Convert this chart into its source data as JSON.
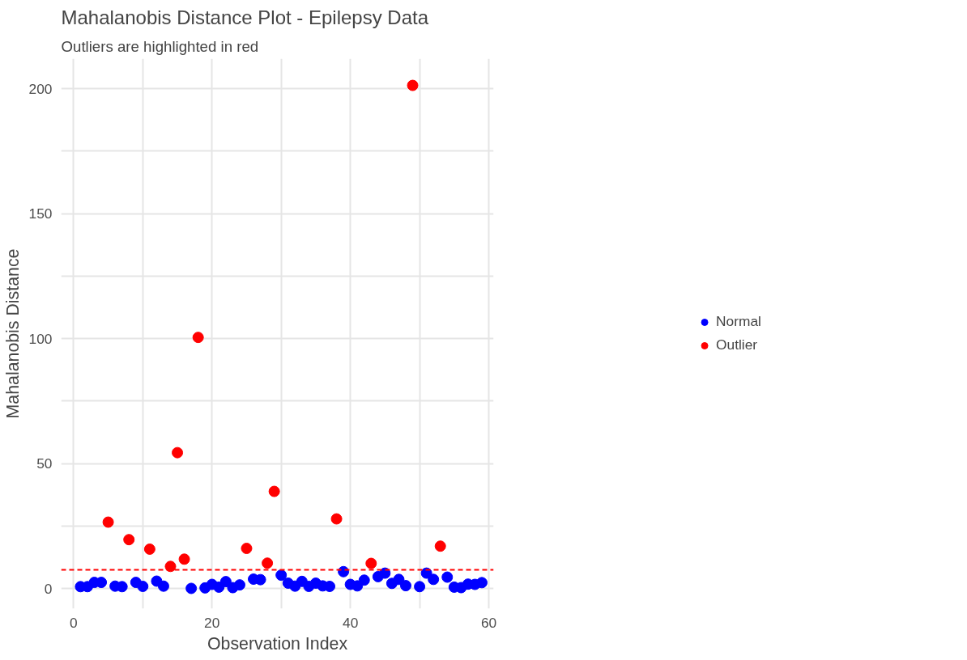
{
  "chart_data": {
    "type": "scatter",
    "title": "Mahalanobis Distance Plot - Epilepsy Data",
    "subtitle": "Outliers are highlighted in red",
    "xlabel": "Observation Index",
    "ylabel": "Mahalanobis Distance",
    "series": [
      {
        "name": "Normal",
        "color": "#0000ff",
        "x": [
          1,
          2,
          3,
          4,
          6,
          7,
          9,
          10,
          12,
          13,
          17,
          19,
          20,
          21,
          22,
          23,
          24,
          26,
          27,
          30,
          31,
          32,
          33,
          34,
          35,
          36,
          37,
          39,
          40,
          41,
          42,
          44,
          45,
          46,
          47,
          48,
          50,
          51,
          52,
          54,
          55,
          56,
          57,
          58,
          59
        ],
        "values": [
          0.8,
          0.8,
          2.5,
          2.5,
          1.0,
          0.8,
          2.5,
          0.9,
          3.0,
          1.0,
          0.1,
          0.3,
          1.7,
          0.6,
          2.8,
          0.4,
          1.5,
          3.8,
          3.6,
          5.4,
          2.2,
          1.0,
          2.9,
          0.9,
          2.2,
          1.1,
          0.9,
          6.8,
          1.7,
          1.1,
          3.4,
          4.8,
          6.2,
          2.1,
          3.7,
          1.2,
          0.8,
          6.2,
          3.7,
          4.6,
          0.6,
          0.4,
          1.8,
          1.7,
          2.4
        ]
      },
      {
        "name": "Outlier",
        "color": "#ff0000",
        "x": [
          5,
          8,
          11,
          14,
          15,
          16,
          18,
          25,
          28,
          29,
          38,
          43,
          49,
          53
        ],
        "values": [
          26.6,
          19.6,
          15.8,
          8.9,
          54.4,
          11.8,
          100.5,
          16.1,
          10.2,
          38.9,
          27.9,
          10.1,
          201.3,
          17.0
        ]
      }
    ],
    "ref_lines": [
      {
        "axis": "y",
        "value": 7.5,
        "color": "#ff0000",
        "line_style": "dashed"
      }
    ],
    "xlim": [
      -1.8,
      60.7
    ],
    "ylim": [
      -8,
      212
    ],
    "xticks": [
      0,
      {
        "value": 10,
        "label": null
      },
      20,
      {
        "value": 30,
        "label": null
      },
      40,
      {
        "value": 50,
        "label": null
      },
      60
    ],
    "yticks": [
      0,
      {
        "value": 25,
        "label": null
      },
      50,
      {
        "value": 75,
        "label": null
      },
      100,
      {
        "value": 125,
        "label": null
      },
      150,
      {
        "value": 175,
        "label": null
      },
      200
    ],
    "grid": true,
    "legend": "right",
    "marker": "circle"
  }
}
